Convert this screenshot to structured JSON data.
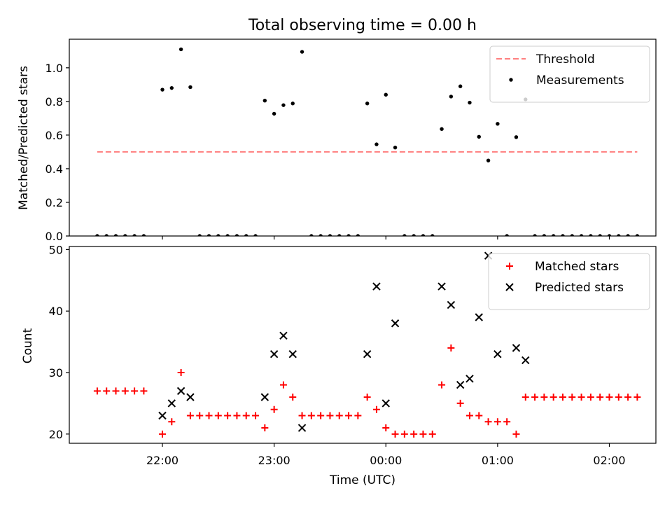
{
  "title": "Total observing time = 0.00 h",
  "chart_data": [
    {
      "type": "scatter",
      "ylabel": "Matched/Predicted stars",
      "ylim": [
        0,
        1.17
      ],
      "yticks": [
        0.0,
        0.2,
        0.4,
        0.6,
        0.8,
        1.0
      ],
      "ytick_labels": [
        "0.0",
        "0.2",
        "0.4",
        "0.6",
        "0.8",
        "1.0"
      ],
      "legend_position": "top-right",
      "threshold": {
        "name": "Threshold",
        "value": 0.5,
        "x_start": "21:25",
        "x_end": "02:15",
        "color": "#ff7f7f",
        "style": "dashed"
      },
      "series": [
        {
          "name": "Measurements",
          "marker": "dot",
          "color": "#000000",
          "points": [
            [
              "21:25",
              0
            ],
            [
              "21:30",
              0
            ],
            [
              "21:35",
              0
            ],
            [
              "21:40",
              0
            ],
            [
              "21:45",
              0
            ],
            [
              "21:50",
              0
            ],
            [
              "22:00",
              0.87
            ],
            [
              "22:05",
              0.88
            ],
            [
              "22:10",
              1.11
            ],
            [
              "22:15",
              0.885
            ],
            [
              "22:20",
              0
            ],
            [
              "22:25",
              0
            ],
            [
              "22:30",
              0
            ],
            [
              "22:35",
              0
            ],
            [
              "22:40",
              0
            ],
            [
              "22:45",
              0
            ],
            [
              "22:50",
              0
            ],
            [
              "22:55",
              0.805
            ],
            [
              "23:00",
              0.727
            ],
            [
              "23:05",
              0.778
            ],
            [
              "23:10",
              0.788
            ],
            [
              "23:15",
              1.095
            ],
            [
              "23:20",
              0
            ],
            [
              "23:25",
              0
            ],
            [
              "23:30",
              0
            ],
            [
              "23:35",
              0
            ],
            [
              "23:40",
              0
            ],
            [
              "23:45",
              0
            ],
            [
              "23:50",
              0.788
            ],
            [
              "23:55",
              0.545
            ],
            [
              "00:00",
              0.84
            ],
            [
              "00:05",
              0.526
            ],
            [
              "00:10",
              0
            ],
            [
              "00:15",
              0
            ],
            [
              "00:20",
              0
            ],
            [
              "00:25",
              0
            ],
            [
              "00:30",
              0.636
            ],
            [
              "00:35",
              0.829
            ],
            [
              "00:40",
              0.89
            ],
            [
              "00:45",
              0.793
            ],
            [
              "00:50",
              0.59
            ],
            [
              "00:55",
              0.449
            ],
            [
              "01:00",
              0.667
            ],
            [
              "01:05",
              0
            ],
            [
              "01:10",
              0.588
            ],
            [
              "01:15",
              0.812
            ],
            [
              "01:20",
              0
            ],
            [
              "01:25",
              0
            ],
            [
              "01:30",
              0
            ],
            [
              "01:35",
              0
            ],
            [
              "01:40",
              0
            ],
            [
              "01:45",
              0
            ],
            [
              "01:50",
              0
            ],
            [
              "01:55",
              0
            ],
            [
              "02:00",
              0
            ],
            [
              "02:05",
              0
            ],
            [
              "02:10",
              0
            ],
            [
              "02:15",
              0
            ]
          ]
        }
      ]
    },
    {
      "type": "scatter",
      "xlabel": "Time (UTC)",
      "ylabel": "Count",
      "ylim": [
        18.5,
        50.5
      ],
      "yticks": [
        20,
        30,
        40,
        50
      ],
      "ytick_labels": [
        "20",
        "30",
        "40",
        "50"
      ],
      "xlim": [
        "21:10",
        "02:25"
      ],
      "xticks": [
        "22:00",
        "23:00",
        "00:00",
        "01:00",
        "02:00"
      ],
      "xtick_labels": [
        "22:00",
        "23:00",
        "00:00",
        "01:00",
        "02:00"
      ],
      "legend_position": "top-right",
      "series": [
        {
          "name": "Matched stars",
          "marker": "plus",
          "color": "#ff0000",
          "points": [
            [
              "21:25",
              27
            ],
            [
              "21:30",
              27
            ],
            [
              "21:35",
              27
            ],
            [
              "21:40",
              27
            ],
            [
              "21:45",
              27
            ],
            [
              "21:50",
              27
            ],
            [
              "22:00",
              20
            ],
            [
              "22:05",
              22
            ],
            [
              "22:10",
              30
            ],
            [
              "22:15",
              23
            ],
            [
              "22:20",
              23
            ],
            [
              "22:25",
              23
            ],
            [
              "22:30",
              23
            ],
            [
              "22:35",
              23
            ],
            [
              "22:40",
              23
            ],
            [
              "22:45",
              23
            ],
            [
              "22:50",
              23
            ],
            [
              "22:55",
              21
            ],
            [
              "23:00",
              24
            ],
            [
              "23:05",
              28
            ],
            [
              "23:10",
              26
            ],
            [
              "23:15",
              23
            ],
            [
              "23:20",
              23
            ],
            [
              "23:25",
              23
            ],
            [
              "23:30",
              23
            ],
            [
              "23:35",
              23
            ],
            [
              "23:40",
              23
            ],
            [
              "23:45",
              23
            ],
            [
              "23:50",
              26
            ],
            [
              "23:55",
              24
            ],
            [
              "00:00",
              21
            ],
            [
              "00:05",
              20
            ],
            [
              "00:10",
              20
            ],
            [
              "00:15",
              20
            ],
            [
              "00:20",
              20
            ],
            [
              "00:25",
              20
            ],
            [
              "00:30",
              28
            ],
            [
              "00:35",
              34
            ],
            [
              "00:40",
              25
            ],
            [
              "00:45",
              23
            ],
            [
              "00:50",
              23
            ],
            [
              "00:55",
              22
            ],
            [
              "01:00",
              22
            ],
            [
              "01:05",
              22
            ],
            [
              "01:10",
              20
            ],
            [
              "01:15",
              26
            ],
            [
              "01:20",
              26
            ],
            [
              "01:25",
              26
            ],
            [
              "01:30",
              26
            ],
            [
              "01:35",
              26
            ],
            [
              "01:40",
              26
            ],
            [
              "01:45",
              26
            ],
            [
              "01:50",
              26
            ],
            [
              "01:55",
              26
            ],
            [
              "02:00",
              26
            ],
            [
              "02:05",
              26
            ],
            [
              "02:10",
              26
            ],
            [
              "02:15",
              26
            ]
          ]
        },
        {
          "name": "Predicted stars",
          "marker": "x",
          "color": "#000000",
          "points": [
            [
              "22:00",
              23
            ],
            [
              "22:05",
              25
            ],
            [
              "22:10",
              27
            ],
            [
              "22:15",
              26
            ],
            [
              "22:55",
              26
            ],
            [
              "23:00",
              33
            ],
            [
              "23:05",
              36
            ],
            [
              "23:10",
              33
            ],
            [
              "23:15",
              21
            ],
            [
              "23:50",
              33
            ],
            [
              "23:55",
              44
            ],
            [
              "00:00",
              25
            ],
            [
              "00:05",
              38
            ],
            [
              "00:30",
              44
            ],
            [
              "00:35",
              41
            ],
            [
              "00:40",
              28
            ],
            [
              "00:45",
              29
            ],
            [
              "00:50",
              39
            ],
            [
              "00:55",
              49
            ],
            [
              "01:00",
              33
            ],
            [
              "01:10",
              34
            ],
            [
              "01:15",
              32
            ]
          ]
        }
      ]
    }
  ]
}
